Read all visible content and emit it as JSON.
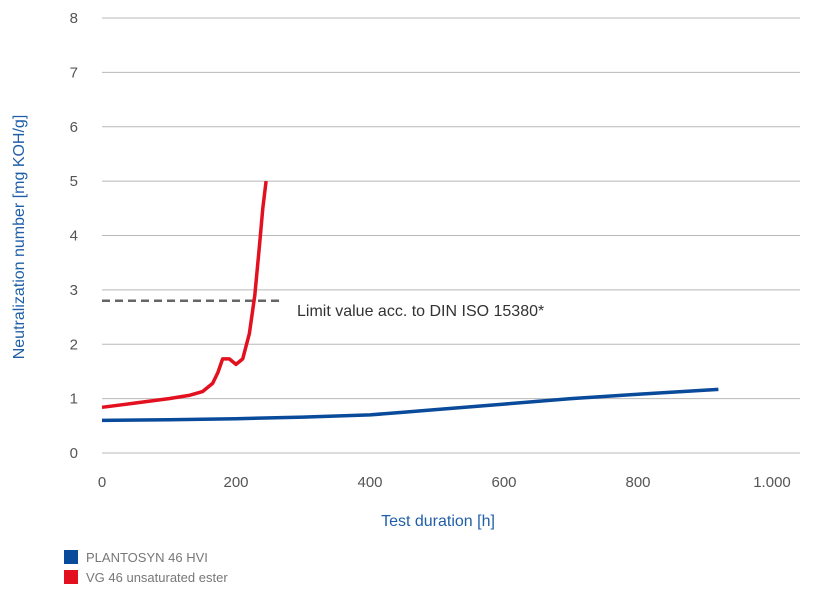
{
  "chart_data": {
    "type": "line",
    "xlabel": "Test duration [h]",
    "ylabel": "Neutralization number [mg KOH/g]",
    "xlim": [
      0,
      1000
    ],
    "ylim": [
      0,
      8
    ],
    "x_ticks": [
      {
        "value": 0,
        "label": "0"
      },
      {
        "value": 200,
        "label": "200"
      },
      {
        "value": 400,
        "label": "400"
      },
      {
        "value": 600,
        "label": "600"
      },
      {
        "value": 800,
        "label": "800"
      },
      {
        "value": 1000,
        "label": "1.000"
      }
    ],
    "y_ticks": [
      {
        "value": 0,
        "label": "0"
      },
      {
        "value": 1,
        "label": "1"
      },
      {
        "value": 2,
        "label": "2"
      },
      {
        "value": 3,
        "label": "3"
      },
      {
        "value": 4,
        "label": "4"
      },
      {
        "value": 5,
        "label": "5"
      },
      {
        "value": 6,
        "label": "6"
      },
      {
        "value": 7,
        "label": "7"
      },
      {
        "value": 8,
        "label": "8"
      }
    ],
    "grid": "horizontal",
    "series": [
      {
        "name": "PLANTOSYN 46 HVI",
        "color": "#0a4a9a",
        "points": [
          [
            0,
            0.6
          ],
          [
            100,
            0.61
          ],
          [
            200,
            0.63
          ],
          [
            300,
            0.66
          ],
          [
            400,
            0.7
          ],
          [
            450,
            0.75
          ],
          [
            500,
            0.8
          ],
          [
            600,
            0.9
          ],
          [
            700,
            1.0
          ],
          [
            800,
            1.08
          ],
          [
            920,
            1.17
          ]
        ]
      },
      {
        "name": "VG 46 unsaturated ester",
        "color": "#e3101f",
        "points": [
          [
            0,
            0.84
          ],
          [
            50,
            0.92
          ],
          [
            100,
            1.0
          ],
          [
            130,
            1.06
          ],
          [
            150,
            1.13
          ],
          [
            165,
            1.28
          ],
          [
            173,
            1.48
          ],
          [
            180,
            1.73
          ],
          [
            190,
            1.73
          ],
          [
            200,
            1.63
          ],
          [
            210,
            1.73
          ],
          [
            220,
            2.2
          ],
          [
            228,
            2.9
          ],
          [
            235,
            3.8
          ],
          [
            240,
            4.5
          ],
          [
            245,
            5.0
          ]
        ]
      }
    ],
    "limit_line": {
      "value": 2.8,
      "x_range": [
        0,
        270
      ],
      "label": "Limit value acc. to DIN ISO 15380*",
      "color": "#666666"
    }
  }
}
